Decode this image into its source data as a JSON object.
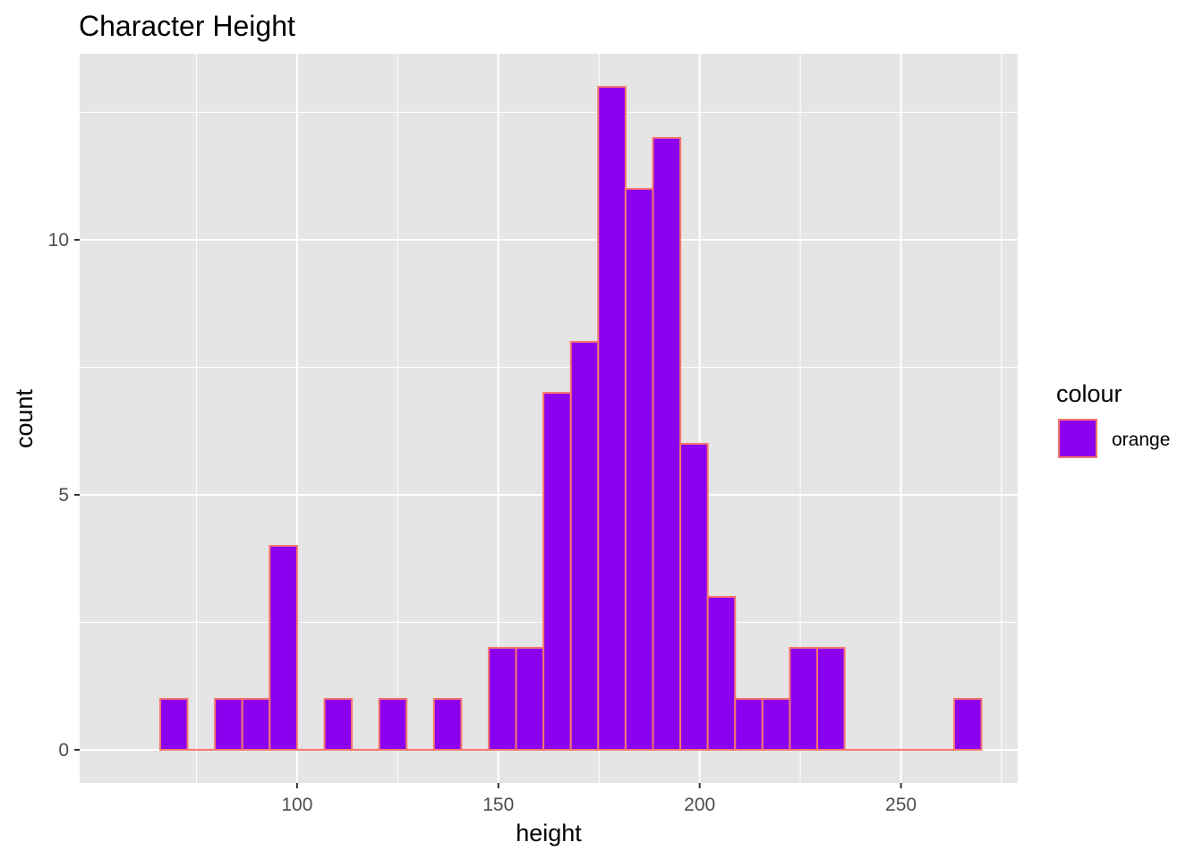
{
  "chart_data": {
    "type": "histogram",
    "title": "Character Height",
    "xlabel": "height",
    "ylabel": "count",
    "bin_width": 6.8,
    "bin_start": 66,
    "counts": [
      1,
      0,
      1,
      1,
      4,
      0,
      1,
      0,
      1,
      0,
      1,
      0,
      2,
      2,
      7,
      8,
      13,
      11,
      12,
      6,
      3,
      1,
      1,
      2,
      2,
      0,
      0,
      0,
      0,
      1
    ],
    "xlim": [
      46,
      279
    ],
    "ylim": [
      -0.65,
      13.65
    ],
    "x_ticks": [
      100,
      150,
      200,
      250
    ],
    "y_ticks": [
      0,
      5,
      10
    ],
    "grid": true,
    "legend": {
      "title": "colour",
      "entries": [
        {
          "label": "orange"
        }
      ],
      "position": "right"
    },
    "colors": {
      "fill": "#8B00EE",
      "outline": "#F8766D",
      "panel": "#E5E5E5",
      "grid": "#FFFFFF"
    }
  }
}
